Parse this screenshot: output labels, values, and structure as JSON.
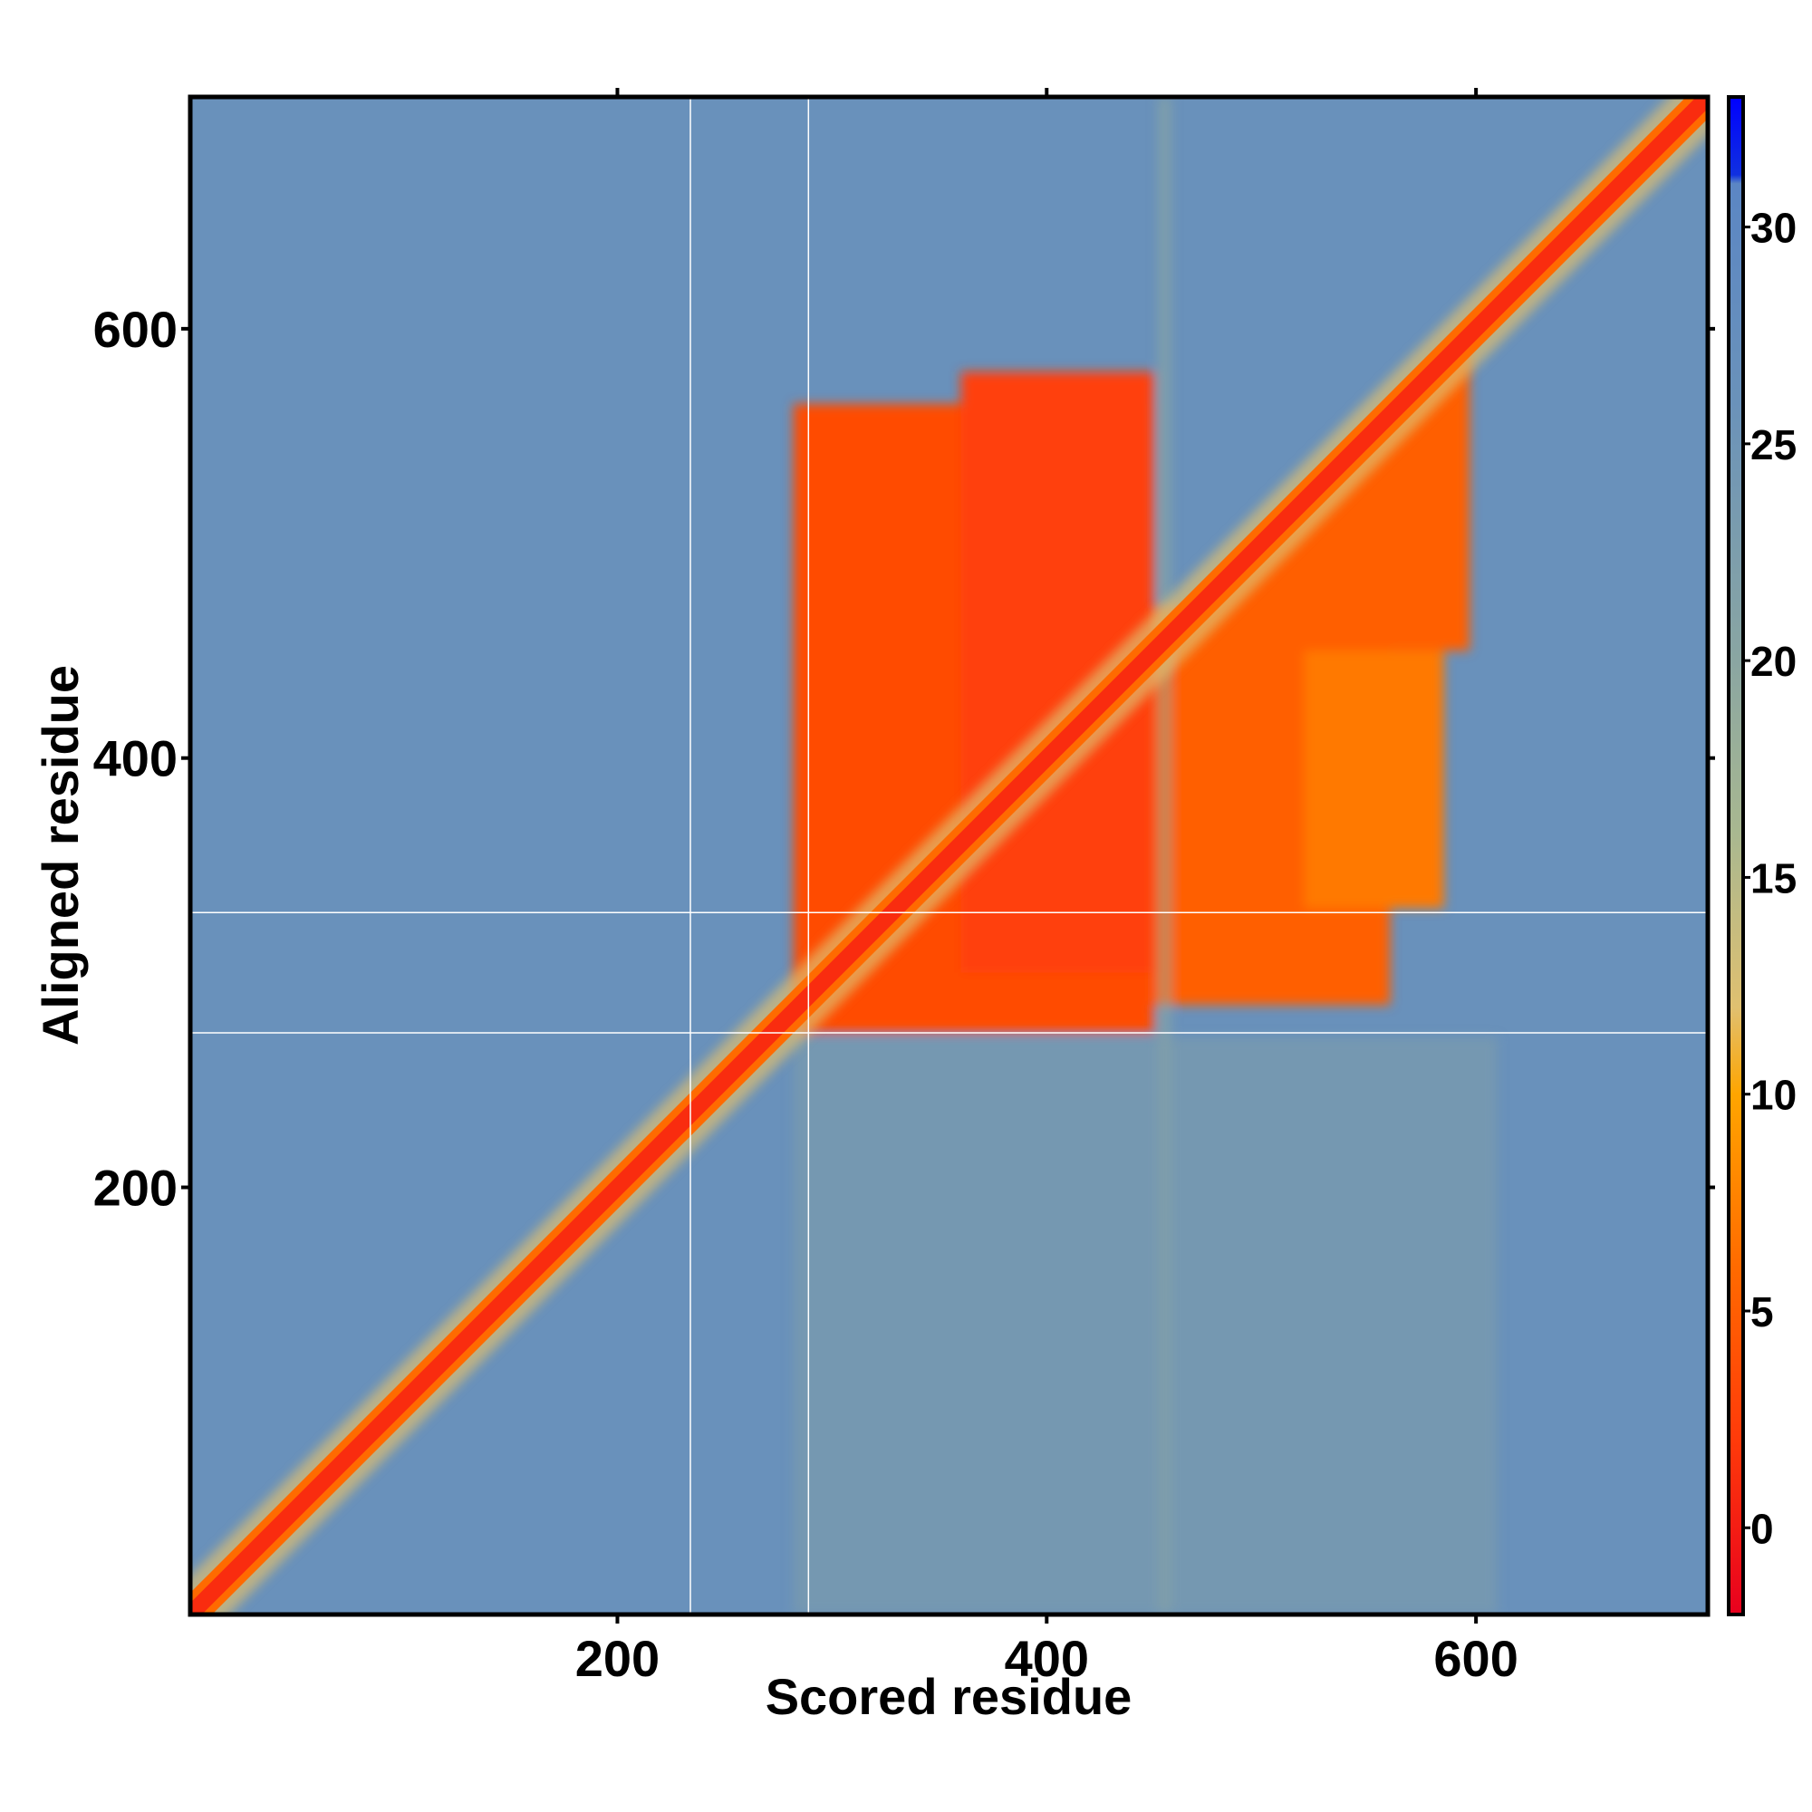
{
  "chart_data": {
    "type": "heatmap",
    "title": "",
    "xlabel": "Scored residue",
    "ylabel": "Aligned residue",
    "xlim": [
      1,
      708
    ],
    "ylim": [
      1,
      708
    ],
    "x_ticks": [
      200,
      400,
      600
    ],
    "y_ticks": [
      200,
      400,
      600
    ],
    "colorbar": {
      "range": [
        -2,
        33
      ],
      "ticks": [
        0,
        5,
        10,
        15,
        20,
        25,
        30
      ],
      "stops": [
        {
          "value": -2,
          "color": "#e8001e"
        },
        {
          "value": 2,
          "color": "#ff3a0a"
        },
        {
          "value": 6,
          "color": "#ff6a00"
        },
        {
          "value": 10,
          "color": "#ffa500"
        },
        {
          "value": 12,
          "color": "#e0c070"
        },
        {
          "value": 16,
          "color": "#a9b890"
        },
        {
          "value": 20,
          "color": "#8aa6a2"
        },
        {
          "value": 26,
          "color": "#6a92ba"
        },
        {
          "value": 31,
          "color": "#5b86c4"
        },
        {
          "value": 31.2,
          "color": "#1030e0"
        },
        {
          "value": 33,
          "color": "#0000ff"
        }
      ]
    },
    "background_value": 26.5,
    "diagonal_value": 1,
    "gap_lines": {
      "scored_residue": [
        234,
        289
      ],
      "aligned_residue": [
        272,
        328
      ]
    },
    "regions": [
      {
        "label": "low-error block",
        "x_range": [
          282,
          450
        ],
        "y_range": [
          272,
          565
        ],
        "value": 3.5
      },
      {
        "label": "low-error block",
        "x_range": [
          360,
          450
        ],
        "y_range": [
          300,
          580
        ],
        "value": 2.5
      },
      {
        "label": "low-error block",
        "x_range": [
          450,
          560
        ],
        "y_range": [
          285,
          470
        ],
        "value": 5
      },
      {
        "label": "triangular extension",
        "x_range": [
          450,
          597
        ],
        "y_range": [
          450,
          597
        ],
        "value": 5
      },
      {
        "label": "low-error block",
        "x_range": [
          520,
          585
        ],
        "y_range": [
          330,
          450
        ],
        "value": 7
      },
      {
        "label": "moderate stripe",
        "x_range": [
          452,
          458
        ],
        "y_range": [
          1,
          708
        ],
        "value": 19
      },
      {
        "label": "moderate band",
        "x_range": [
          282,
          610
        ],
        "y_range": [
          1,
          270
        ],
        "value": 22
      }
    ]
  }
}
